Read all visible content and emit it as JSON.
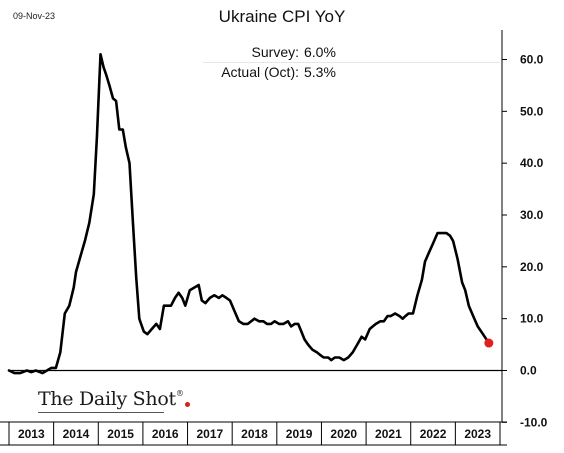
{
  "header": {
    "date": "09-Nov-23",
    "title": "Ukraine CPI YoY"
  },
  "annotations": {
    "survey_label": "Survey:",
    "survey_value": "6.0%",
    "actual_label": "Actual (Oct):",
    "actual_value": "5.3%"
  },
  "brand": {
    "name": "The Daily Shot",
    "logo": "The Daily Shot®"
  },
  "colors": {
    "line": "#000000",
    "marker": "#e02020",
    "axis": "#000000"
  },
  "chart_data": {
    "type": "line",
    "title": "Ukraine CPI YoY",
    "xlabel": "",
    "ylabel": "",
    "ylim": [
      -10,
      65
    ],
    "y_ticks": [
      -10,
      0,
      10,
      20,
      30,
      40,
      50,
      60
    ],
    "y_tick_labels": [
      "-10.0",
      "0.0",
      "10.0",
      "20.0",
      "30.0",
      "40.0",
      "50.0",
      "60.0"
    ],
    "x_tick_labels": [
      "2013",
      "2014",
      "2015",
      "2016",
      "2017",
      "2018",
      "2019",
      "2020",
      "2021",
      "2022",
      "2023"
    ],
    "x_range": [
      2013.0,
      2024.0
    ],
    "grid": false,
    "legend": "none",
    "series": [
      {
        "x": [
          2013.0,
          2013.12,
          2013.25,
          2013.4,
          2013.5,
          2013.6,
          2013.75,
          2013.85,
          2013.95,
          2014.05,
          2014.15,
          2014.25,
          2014.35,
          2014.45,
          2014.5,
          2014.6,
          2014.7,
          2014.8,
          2014.9,
          2014.97,
          2015.05,
          2015.12,
          2015.18,
          2015.25,
          2015.33,
          2015.4,
          2015.47,
          2015.55,
          2015.62,
          2015.7,
          2015.78,
          2015.85,
          2015.92,
          2015.96,
          2016.02,
          2016.1,
          2016.2,
          2016.3,
          2016.38,
          2016.47,
          2016.55,
          2016.63,
          2016.72,
          2016.8,
          2016.88,
          2016.95,
          2017.05,
          2017.15,
          2017.25,
          2017.32,
          2017.4,
          2017.5,
          2017.6,
          2017.7,
          2017.78,
          2017.87,
          2017.95,
          2018.05,
          2018.15,
          2018.25,
          2018.35,
          2018.5,
          2018.6,
          2018.7,
          2018.78,
          2018.87,
          2018.95,
          2019.05,
          2019.15,
          2019.25,
          2019.32,
          2019.4,
          2019.48,
          2019.55,
          2019.62,
          2019.7,
          2019.8,
          2019.9,
          2019.97,
          2020.05,
          2020.15,
          2020.22,
          2020.3,
          2020.4,
          2020.5,
          2020.6,
          2020.7,
          2020.8,
          2020.9,
          2020.98,
          2021.08,
          2021.15,
          2021.22,
          2021.32,
          2021.4,
          2021.48,
          2021.55,
          2021.65,
          2021.75,
          2021.82,
          2021.88,
          2021.95,
          2022.05,
          2022.15,
          2022.25,
          2022.32,
          2022.42,
          2022.5,
          2022.6,
          2022.7,
          2022.8,
          2022.88,
          2022.95,
          2023.05,
          2023.15,
          2023.22,
          2023.3,
          2023.4,
          2023.5,
          2023.62,
          2023.75
        ],
        "y": [
          0.0,
          -0.5,
          -0.5,
          0.0,
          -0.3,
          0.0,
          -0.5,
          0.0,
          0.5,
          0.5,
          3.5,
          11.0,
          12.5,
          16.0,
          19.0,
          22.0,
          25.0,
          28.5,
          34.0,
          45.0,
          61.0,
          58.5,
          57.0,
          55.0,
          52.5,
          52.0,
          46.5,
          46.5,
          43.0,
          40.0,
          28.0,
          18.0,
          10.0,
          9.0,
          7.5,
          7.0,
          8.0,
          9.0,
          8.0,
          12.5,
          12.5,
          12.5,
          14.0,
          15.0,
          14.0,
          12.5,
          15.5,
          16.0,
          16.5,
          13.5,
          13.0,
          14.0,
          14.5,
          14.0,
          14.5,
          14.0,
          13.5,
          11.5,
          9.5,
          9.0,
          9.0,
          10.0,
          9.5,
          9.5,
          9.0,
          9.0,
          9.5,
          9.0,
          9.0,
          9.5,
          8.5,
          9.0,
          9.0,
          7.5,
          6.0,
          5.0,
          4.0,
          3.5,
          3.0,
          2.5,
          2.5,
          2.0,
          2.5,
          2.5,
          2.0,
          2.5,
          3.5,
          5.0,
          6.5,
          6.0,
          8.0,
          8.5,
          9.0,
          9.5,
          9.5,
          10.5,
          10.5,
          11.0,
          10.5,
          10.0,
          10.5,
          11.0,
          11.0,
          14.5,
          17.5,
          21.0,
          23.0,
          24.5,
          26.5,
          26.5,
          26.5,
          26.0,
          25.0,
          21.5,
          17.0,
          15.5,
          12.5,
          10.5,
          8.5,
          7.0,
          5.3
        ]
      }
    ],
    "last_point": {
      "x": 2023.75,
      "y": 5.3
    }
  }
}
